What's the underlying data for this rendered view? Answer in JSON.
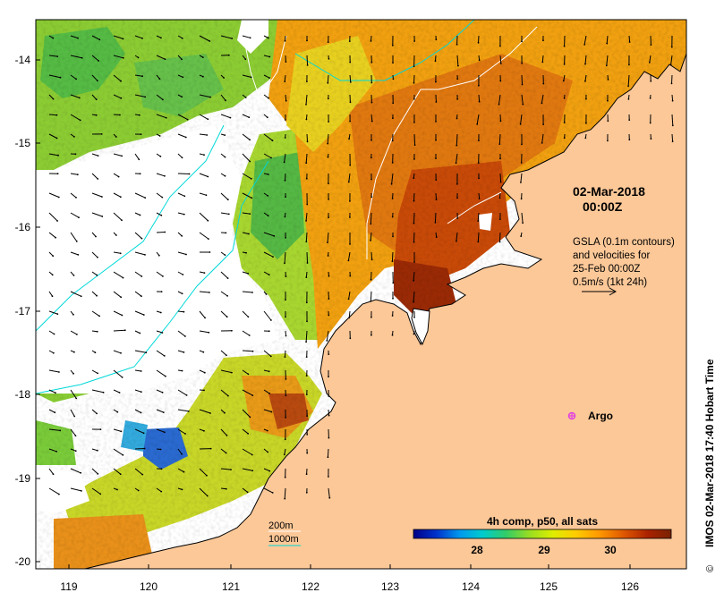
{
  "map": {
    "date_label": "02-Mar-2018",
    "time_label": "00:00Z",
    "gsla_lines": [
      "GSLA (0.1m contours)",
      "and velocities for",
      "25-Feb 00:00Z",
      "0.5m/s (1kt 24h)"
    ],
    "argo_label": "Argo",
    "depth_legend": {
      "line1": "200m",
      "line2": "1000m"
    },
    "colorbar": {
      "title": "4h comp, p50, all sats",
      "ticks": [
        "28",
        "29",
        "30"
      ],
      "colors": [
        "#000088",
        "#0033cc",
        "#0099ee",
        "#00cccc",
        "#33cc66",
        "#99dd22",
        "#ddee00",
        "#ffcc00",
        "#ff9900",
        "#dd5500",
        "#aa2200",
        "#772200"
      ]
    },
    "credit": "IMOS 02-Mar-2018 17:40 Hobart Time",
    "copyright_symbol": "©",
    "lon_ticks": [
      "119",
      "120",
      "121",
      "122",
      "123",
      "124",
      "125",
      "126"
    ],
    "lat_ticks": [
      "-14",
      "-15",
      "-16",
      "-17",
      "-18",
      "-19",
      "-20"
    ],
    "colors": {
      "land": "#fcc898",
      "coast": "#000000",
      "contour_200m": "#ffffff",
      "contour_1000m": "#00d8d8",
      "argo": "#e040e0"
    }
  }
}
